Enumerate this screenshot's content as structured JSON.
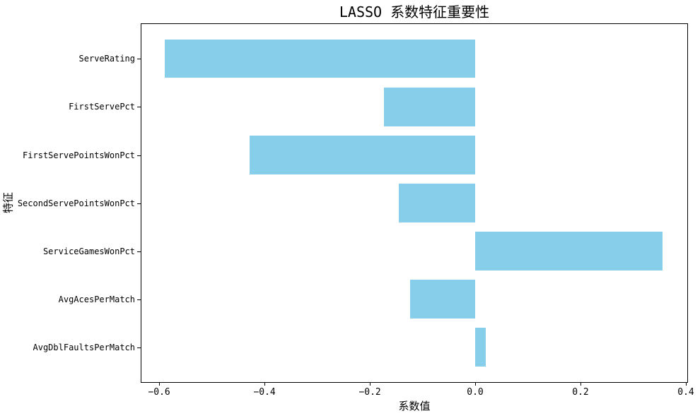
{
  "chart_data": {
    "type": "bar",
    "orientation": "horizontal",
    "title": "LASSO 系数特征重要性",
    "xlabel": "系数值",
    "ylabel": "特征",
    "categories": [
      "ServeRating",
      "FirstServePct",
      "FirstServePointsWonPct",
      "SecondServePointsWonPct",
      "ServiceGamesWonPct",
      "AvgAcesPerMatch",
      "AvgDblFaultsPerMatch"
    ],
    "values": [
      -0.59,
      -0.173,
      -0.428,
      -0.145,
      0.356,
      -0.124,
      0.02
    ],
    "xlim": [
      -0.635,
      0.404
    ],
    "x_ticks": [
      {
        "value": -0.6,
        "label": "−0.6"
      },
      {
        "value": -0.4,
        "label": "−0.4"
      },
      {
        "value": -0.2,
        "label": "−0.2"
      },
      {
        "value": 0.0,
        "label": "0.0"
      },
      {
        "value": 0.2,
        "label": "0.2"
      },
      {
        "value": 0.4,
        "label": "0.4"
      }
    ],
    "bar_color": "#87CEEB",
    "spine_color": "#000000",
    "background_color": "#ffffff",
    "grid": false,
    "legend": null
  }
}
